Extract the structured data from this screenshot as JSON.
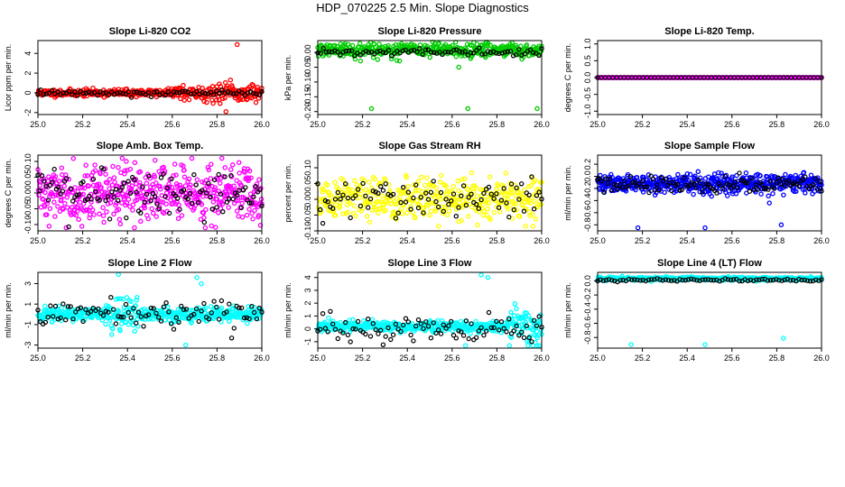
{
  "figure": {
    "title": "HDP_070225  2.5 Min. Slope Diagnostics"
  },
  "chart_data": [
    {
      "type": "scatter",
      "title": "Slope Li-820 CO2",
      "xlabel": "",
      "ylabel": "Licor ppm per min.",
      "xlim": [
        25.0,
        26.0
      ],
      "ylim": [
        -2.2,
        5.3
      ],
      "xticks": [
        "25.0",
        "25.2",
        "25.4",
        "25.6",
        "25.8",
        "26.0"
      ],
      "yticks": [
        "-2",
        "0",
        "2",
        "4"
      ],
      "series": [
        {
          "name": "",
          "color": "#ff0000",
          "values": []
        },
        {
          "name": "",
          "color": "#000000",
          "values": []
        }
      ]
    },
    {
      "type": "scatter",
      "title": "Slope Li-820 Pressure",
      "xlabel": "",
      "ylabel": "kPa per min.",
      "xlim": [
        25.0,
        26.0
      ],
      "ylim": [
        -0.21,
        0.04
      ],
      "xticks": [
        "25.0",
        "25.2",
        "25.4",
        "25.6",
        "25.8",
        "26.0"
      ],
      "yticks": [
        "-0.20",
        "-0.15",
        "-0.10",
        "-0.05",
        "0.00"
      ],
      "series": [
        {
          "name": "",
          "color": "#00cc00",
          "values": []
        },
        {
          "name": "",
          "color": "#000000",
          "values": []
        }
      ]
    },
    {
      "type": "scatter",
      "title": "Slope Li-820 Temp.",
      "xlabel": "",
      "ylabel": "degrees C per min.",
      "xlim": [
        25.0,
        26.0
      ],
      "ylim": [
        -1.1,
        1.1
      ],
      "xticks": [
        "25.0",
        "25.2",
        "25.4",
        "25.6",
        "25.8",
        "26.0"
      ],
      "yticks": [
        "-1.0",
        "-0.5",
        "0.0",
        "0.5",
        "1.0"
      ],
      "series": [
        {
          "name": "",
          "color": "#ff00ff",
          "values": []
        },
        {
          "name": "",
          "color": "#000000",
          "values": []
        }
      ]
    },
    {
      "type": "scatter",
      "title": "Slope Amb. Box Temp.",
      "xlabel": "",
      "ylabel": "degrees C per min.",
      "xlim": [
        25.0,
        26.0
      ],
      "ylim": [
        -0.12,
        0.12
      ],
      "xticks": [
        "25.0",
        "25.2",
        "25.4",
        "25.6",
        "25.8",
        "26.0"
      ],
      "yticks": [
        "-0.10",
        "-0.05",
        "0.00",
        "0.05",
        "0.10"
      ],
      "series": [
        {
          "name": "",
          "color": "#ff00ff",
          "values": []
        },
        {
          "name": "",
          "color": "#000000",
          "values": []
        }
      ]
    },
    {
      "type": "scatter",
      "title": "Slope Gas Stream RH",
      "xlabel": "",
      "ylabel": "percent per min.",
      "xlim": [
        25.0,
        26.0
      ],
      "ylim": [
        -0.1,
        0.14
      ],
      "xticks": [
        "25.0",
        "25.2",
        "25.4",
        "25.6",
        "25.8",
        "26.0"
      ],
      "yticks": [
        "-0.10",
        "-0.05",
        "0.00",
        "0.05",
        "0.10"
      ],
      "series": [
        {
          "name": "",
          "color": "#ffff00",
          "values": []
        },
        {
          "name": "",
          "color": "#000000",
          "values": []
        }
      ]
    },
    {
      "type": "scatter",
      "title": "Slope Sample Flow",
      "xlabel": "",
      "ylabel": "ml/min per min.",
      "xlim": [
        25.0,
        26.0
      ],
      "ylim": [
        -0.9,
        0.35
      ],
      "xticks": [
        "25.0",
        "25.2",
        "25.4",
        "25.6",
        "25.8",
        "26.0"
      ],
      "yticks": [
        "-0.8",
        "-0.6",
        "-0.4",
        "-0.2",
        "0.0",
        "0.2"
      ],
      "series": [
        {
          "name": "",
          "color": "#0000ff",
          "values": []
        },
        {
          "name": "",
          "color": "#000000",
          "values": []
        }
      ]
    },
    {
      "type": "scatter",
      "title": "Slope Line 2 Flow",
      "xlabel": "",
      "ylabel": "ml/min per min.",
      "xlim": [
        25.0,
        26.0
      ],
      "ylim": [
        -3.3,
        4.1
      ],
      "xticks": [
        "25.0",
        "25.2",
        "25.4",
        "25.6",
        "25.8",
        "26.0"
      ],
      "yticks": [
        "-3",
        "-1",
        "1",
        "3"
      ],
      "series": [
        {
          "name": "",
          "color": "#00ffff",
          "values": []
        },
        {
          "name": "",
          "color": "#000000",
          "values": []
        }
      ]
    },
    {
      "type": "scatter",
      "title": "Slope Line 3 Flow",
      "xlabel": "",
      "ylabel": "ml/min per min.",
      "xlim": [
        25.0,
        26.0
      ],
      "ylim": [
        -1.5,
        4.4
      ],
      "xticks": [
        "25.0",
        "25.2",
        "25.4",
        "25.6",
        "25.8",
        "26.0"
      ],
      "yticks": [
        "-1",
        "0",
        "1",
        "2",
        "3",
        "4"
      ],
      "series": [
        {
          "name": "",
          "color": "#00ffff",
          "values": []
        },
        {
          "name": "",
          "color": "#000000",
          "values": []
        }
      ]
    },
    {
      "type": "scatter",
      "title": "Slope Line 4 (LT) Flow",
      "xlabel": "",
      "ylabel": "ml/min per min.",
      "xlim": [
        25.0,
        26.0
      ],
      "ylim": [
        -0.95,
        0.12
      ],
      "xticks": [
        "25.0",
        "25.2",
        "25.4",
        "25.6",
        "25.8",
        "26.0"
      ],
      "yticks": [
        "-0.8",
        "-0.6",
        "-0.4",
        "-0.2",
        "0.0"
      ],
      "series": [
        {
          "name": "",
          "color": "#00ffff",
          "values": []
        },
        {
          "name": "",
          "color": "#000000",
          "values": []
        }
      ]
    }
  ]
}
